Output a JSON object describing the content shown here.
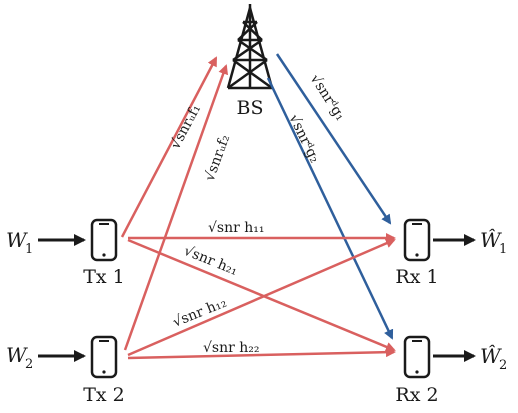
{
  "nodes": {
    "bs": "BS",
    "tx1": "Tx 1",
    "tx2": "Tx 2",
    "rx1": "Rx 1",
    "rx2": "Rx 2"
  },
  "messages": {
    "w1": "W",
    "w1_sub": "1",
    "w2": "W",
    "w2_sub": "2",
    "w1_hat": "Ŵ",
    "w1_hat_sub": "1",
    "w2_hat": "Ŵ",
    "w2_hat_sub": "2"
  },
  "channels": {
    "f1": "√snrᵤf₁",
    "f2": "√snrᵤf₂",
    "g1": "√snrᵈg₁",
    "g2": "√snrᵈg₂",
    "h11": "√snr h₁₁",
    "h21": "√snr h₂₁",
    "h12": "√snr h₁₂",
    "h22": "√snr h₂₂"
  },
  "colors": {
    "uplink": "#d9605f",
    "downlink": "#2f5f9c",
    "device": "#1a1a1a"
  },
  "icons": {
    "tower": "cell-tower-icon",
    "phone": "smartphone-icon"
  }
}
